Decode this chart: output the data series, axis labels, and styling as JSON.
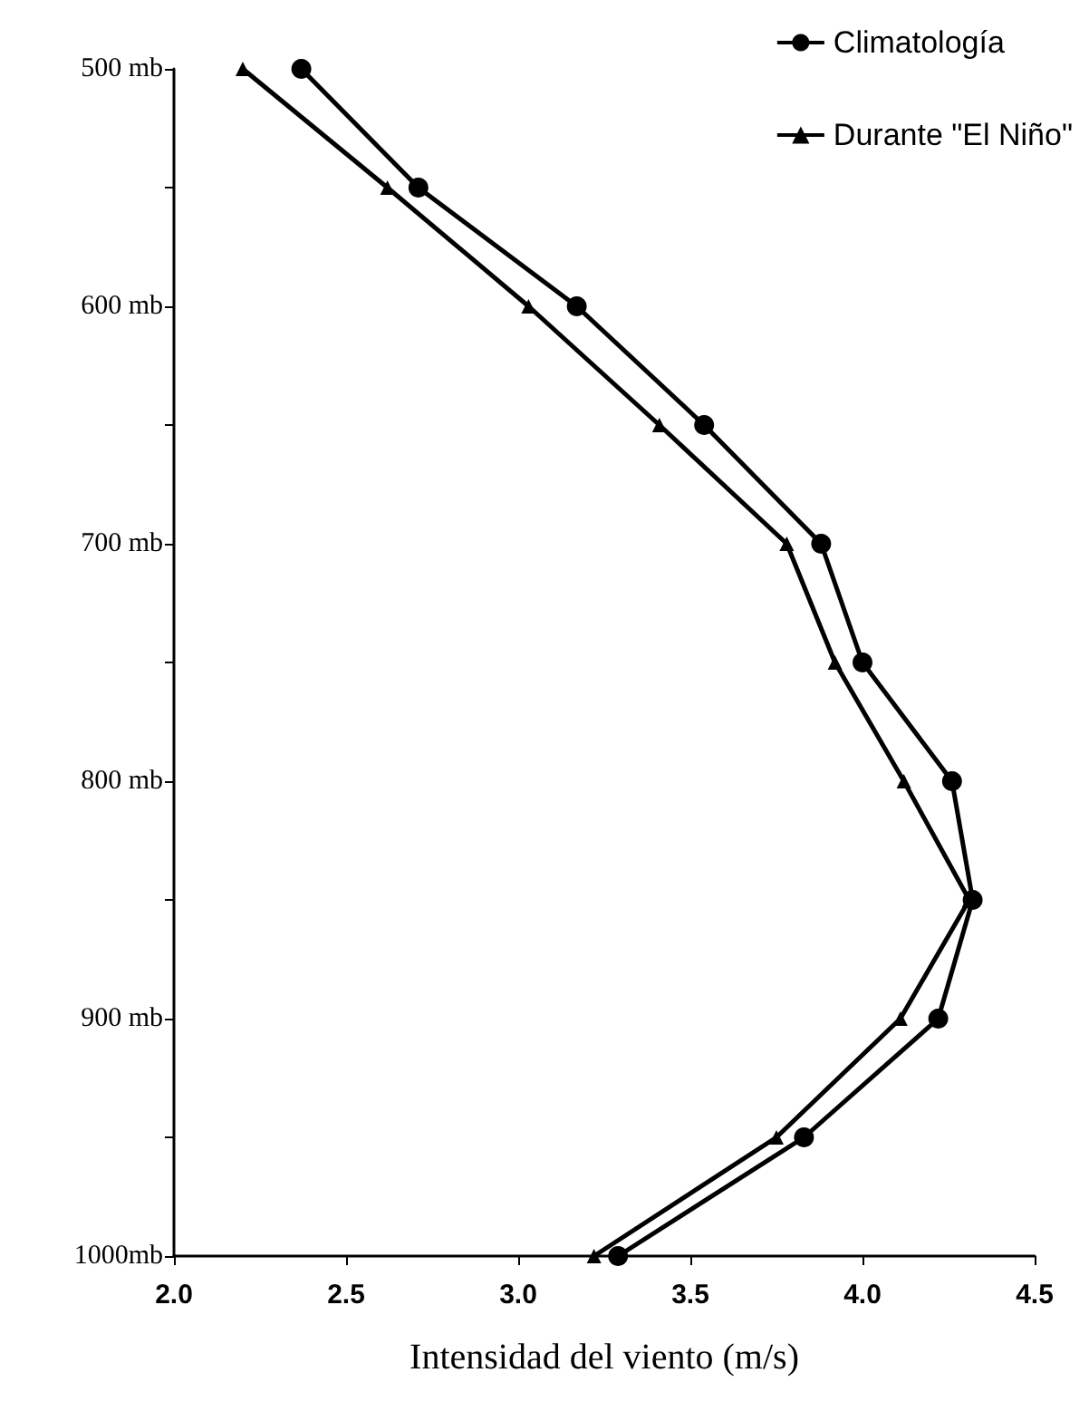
{
  "chart_data": {
    "type": "line",
    "xlabel": "Intensidad del viento (m/s)",
    "xlim": [
      2.0,
      4.5
    ],
    "xticks": [
      {
        "value": 2,
        "label": "2.0"
      },
      {
        "value": 2.5,
        "label": "2.5"
      },
      {
        "value": 3,
        "label": "3.0"
      },
      {
        "value": 3.5,
        "label": "3.5"
      },
      {
        "value": 4,
        "label": "4.0"
      },
      {
        "value": 4.5,
        "label": "4.5"
      }
    ],
    "ylim": [
      1000,
      500
    ],
    "yticks": [
      {
        "value": 500,
        "label": "500 mb"
      },
      {
        "value": 550,
        "label": null
      },
      {
        "value": 600,
        "label": "600 mb"
      },
      {
        "value": 650,
        "label": null
      },
      {
        "value": 700,
        "label": "700 mb"
      },
      {
        "value": 750,
        "label": null
      },
      {
        "value": 800,
        "label": "800 mb"
      },
      {
        "value": 850,
        "label": null
      },
      {
        "value": 900,
        "label": "900 mb"
      },
      {
        "value": 950,
        "label": null
      },
      {
        "value": 1000,
        "label": "1000mb"
      }
    ],
    "grid": false,
    "legend": "top right",
    "series": [
      {
        "name": "Climatología",
        "color": "#000000",
        "marker": "circle",
        "x": [
          2.37,
          2.71,
          3.17,
          3.54,
          3.88,
          4.0,
          4.26,
          4.32,
          4.22,
          3.83,
          3.29
        ],
        "values": [
          500,
          550,
          600,
          650,
          700,
          750,
          800,
          850,
          900,
          950,
          1000
        ]
      },
      {
        "name": "Durante \"El Niño\"",
        "color": "#000000",
        "marker": "triangle",
        "x": [
          2.2,
          2.62,
          3.03,
          3.41,
          3.78,
          3.92,
          4.12,
          4.31,
          4.11,
          3.75,
          3.22
        ],
        "values": [
          500,
          550,
          600,
          650,
          700,
          750,
          800,
          850,
          900,
          950,
          1000
        ]
      }
    ]
  }
}
